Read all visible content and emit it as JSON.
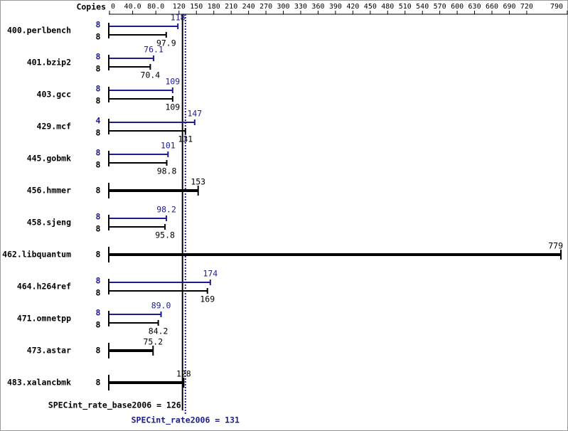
{
  "chart_data": {
    "type": "bar",
    "orientation": "horizontal",
    "copies_label": "Copies",
    "categories": [
      "400.perlbench",
      "401.bzip2",
      "403.gcc",
      "429.mcf",
      "445.gobmk",
      "456.hmmer",
      "458.sjeng",
      "462.libquantum",
      "464.h264ref",
      "471.omnetpp",
      "473.astar",
      "483.xalancbmk"
    ],
    "series": [
      {
        "color": "#1c1c8f",
        "copies": [
          8,
          8,
          8,
          4,
          8,
          null,
          8,
          null,
          8,
          8,
          null,
          null
        ],
        "values": [
          118,
          76.1,
          109,
          147,
          101,
          null,
          98.2,
          null,
          174,
          89.0,
          null,
          null
        ],
        "value_labels": [
          "118",
          "76.1",
          "109",
          "147",
          "101",
          null,
          "98.2",
          null,
          "174",
          "89.0",
          null,
          null
        ]
      },
      {
        "color": "#000000",
        "copies": [
          8,
          8,
          8,
          8,
          8,
          8,
          8,
          8,
          8,
          8,
          8,
          8
        ],
        "values": [
          97.9,
          70.4,
          109,
          131,
          98.8,
          153,
          95.8,
          779,
          169,
          84.2,
          75.2,
          128
        ],
        "value_labels": [
          "97.9",
          "70.4",
          "109",
          "131",
          "98.8",
          "153",
          "95.8",
          "779",
          "169",
          "84.2",
          "75.2",
          "128"
        ]
      }
    ],
    "xlim": [
      0,
      790
    ],
    "xticks": [
      0,
      {
        "value": 40,
        "label": "40.0"
      },
      {
        "value": 80,
        "label": "80.0"
      },
      120,
      150,
      180,
      210,
      240,
      270,
      300,
      330,
      360,
      390,
      420,
      450,
      480,
      510,
      540,
      570,
      600,
      630,
      660,
      690,
      720,
      790
    ],
    "reference_lines": [
      {
        "label": "SPECint_rate_base2006 = 126",
        "value": 126,
        "color": "#000000",
        "style": "solid"
      },
      {
        "label": "SPECint_rate2006 = 131",
        "value": 131,
        "color": "#1c1c8f",
        "style": "dotted"
      }
    ]
  }
}
